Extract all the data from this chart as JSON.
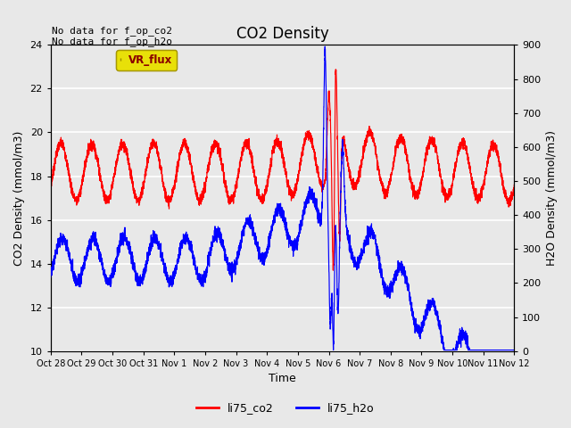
{
  "title": "CO2 Density",
  "ylabel_left": "CO2 Density (mmol/m3)",
  "ylabel_right": "H2O Density (mmol/m3)",
  "xlabel": "Time",
  "ylim_left": [
    10,
    24
  ],
  "ylim_right": [
    0,
    900
  ],
  "yticks_left": [
    10,
    12,
    14,
    16,
    18,
    20,
    22,
    24
  ],
  "yticks_right": [
    0,
    100,
    200,
    300,
    400,
    500,
    600,
    700,
    800,
    900
  ],
  "annotation_text": "No data for f_op_co2\nNo data for f_op_h2o",
  "legend_box_label": "VR_flux",
  "legend_entries": [
    "li75_co2",
    "li75_h2o"
  ],
  "legend_colors": [
    "red",
    "blue"
  ],
  "bg_color": "#e8e8e8",
  "plot_bg_color": "#e8e8e8",
  "grid_color": "white",
  "tick_labels": [
    "Oct 28",
    "Oct 29",
    "Oct 30",
    "Oct 31",
    "Nov 1",
    "Nov 2",
    "Nov 3",
    "Nov 4",
    "Nov 5",
    "Nov 6",
    "Nov 7",
    "Nov 8",
    "Nov 9",
    "Nov 10",
    "Nov 11",
    "Nov 12"
  ]
}
